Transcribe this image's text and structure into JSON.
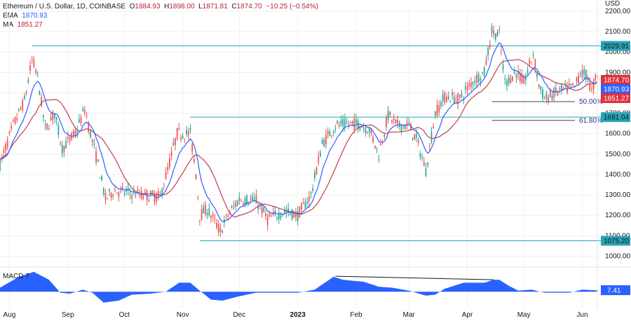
{
  "header": {
    "symbol": "Ethereum / U.S. Dollar, 1D, COINBASE",
    "o_label": "O",
    "o_value": "1884.93",
    "h_label": "H",
    "h_value": "1898.00",
    "l_label": "L",
    "l_value": "1871.81",
    "c_label": "C",
    "c_value": "1874.70",
    "change": "−10.25 (−0.54%)",
    "ema_label": "EMA",
    "ema_value": "1870.93",
    "ma_label": "MA",
    "ma_value": "1851.27"
  },
  "colors": {
    "up": "#26a69a",
    "down": "#ef5350",
    "ema": "#2962ff",
    "ma": "#c2404a",
    "level": "#2aa3b5",
    "macd": "#2962ff",
    "fib": "#434651",
    "grid": "#eef0f3",
    "price_tag": "#e0303b"
  },
  "chart_data": [
    {
      "type": "candlestick",
      "title": "",
      "y_unit": "USD",
      "ylim": [
        950,
        2200
      ],
      "y_ticks": [
        "1000.00",
        "1100.00",
        "1200.00",
        "1300.00",
        "1400.00",
        "1500.00",
        "1600.00",
        "1700.00",
        "1800.00",
        "1900.00",
        "2000.00",
        "2100.00",
        "2200.00"
      ],
      "x_ticks": [
        "Aug",
        "Sep",
        "Oct",
        "Nov",
        "Dec",
        "2023",
        "Feb",
        "Mar",
        "Apr",
        "May",
        "Jun"
      ],
      "x_range": [
        "2022-07-27",
        "2023-06-09"
      ],
      "price_anchors": [
        [
          "2022-07-27",
          1450
        ],
        [
          "2022-08-03",
          1640
        ],
        [
          "2022-08-09",
          1760
        ],
        [
          "2022-08-13",
          1960
        ],
        [
          "2022-08-16",
          1880
        ],
        [
          "2022-08-20",
          1620
        ],
        [
          "2022-08-25",
          1700
        ],
        [
          "2022-08-29",
          1530
        ],
        [
          "2022-09-05",
          1600
        ],
        [
          "2022-09-10",
          1720
        ],
        [
          "2022-09-13",
          1600
        ],
        [
          "2022-09-17",
          1450
        ],
        [
          "2022-09-21",
          1280
        ],
        [
          "2022-09-25",
          1320
        ],
        [
          "2022-10-03",
          1310
        ],
        [
          "2022-10-10",
          1300
        ],
        [
          "2022-10-20",
          1290
        ],
        [
          "2022-10-25",
          1460
        ],
        [
          "2022-10-29",
          1600
        ],
        [
          "2022-11-05",
          1600
        ],
        [
          "2022-11-08",
          1400
        ],
        [
          "2022-11-10",
          1200
        ],
        [
          "2022-11-14",
          1230
        ],
        [
          "2022-11-21",
          1120
        ],
        [
          "2022-11-25",
          1200
        ],
        [
          "2022-12-01",
          1280
        ],
        [
          "2022-12-10",
          1270
        ],
        [
          "2022-12-16",
          1180
        ],
        [
          "2022-12-25",
          1220
        ],
        [
          "2023-01-01",
          1200
        ],
        [
          "2023-01-08",
          1300
        ],
        [
          "2023-01-14",
          1550
        ],
        [
          "2023-01-21",
          1640
        ],
        [
          "2023-02-02",
          1650
        ],
        [
          "2023-02-08",
          1620
        ],
        [
          "2023-02-13",
          1500
        ],
        [
          "2023-02-18",
          1690
        ],
        [
          "2023-02-23",
          1640
        ],
        [
          "2023-03-01",
          1640
        ],
        [
          "2023-03-05",
          1570
        ],
        [
          "2023-03-10",
          1420
        ],
        [
          "2023-03-15",
          1700
        ],
        [
          "2023-03-20",
          1780
        ],
        [
          "2023-03-28",
          1770
        ],
        [
          "2023-04-04",
          1860
        ],
        [
          "2023-04-10",
          1900
        ],
        [
          "2023-04-14",
          2100
        ],
        [
          "2023-04-18",
          2080
        ],
        [
          "2023-04-21",
          1850
        ],
        [
          "2023-04-27",
          1900
        ],
        [
          "2023-05-01",
          1850
        ],
        [
          "2023-05-06",
          1990
        ],
        [
          "2023-05-09",
          1840
        ],
        [
          "2023-05-12",
          1770
        ],
        [
          "2023-05-20",
          1810
        ],
        [
          "2023-05-28",
          1830
        ],
        [
          "2023-05-31",
          1900
        ],
        [
          "2023-06-04",
          1880
        ],
        [
          "2023-06-06",
          1800
        ],
        [
          "2023-06-08",
          1874.7
        ]
      ],
      "ema": {
        "name": "EMA",
        "last": 1870.93
      },
      "ma": {
        "name": "MA",
        "last": 1851.27
      },
      "levels": [
        {
          "label": "2029.91",
          "value": 2029.91,
          "from": "2022-08-13",
          "to": "2023-06-09"
        },
        {
          "label": "1681.04",
          "value": 1681.04,
          "from": "2022-11-05",
          "to": "2023-06-09"
        },
        {
          "label": "1075.20",
          "value": 1075.2,
          "from": "2022-11-10",
          "to": "2023-06-09"
        }
      ],
      "fib_levels": [
        {
          "label": "50.00%",
          "value": 1757,
          "from": "2023-04-14",
          "to": "2023-06-09"
        },
        {
          "label": "61.80%",
          "value": 1665,
          "from": "2023-04-14",
          "to": "2023-06-09"
        }
      ],
      "price_tags": [
        {
          "label": "1874.70",
          "value": 1874.7,
          "kind": "close"
        },
        {
          "label": "1870.93",
          "value": 1870.93,
          "kind": "ema"
        },
        {
          "label": "1851.27",
          "value": 1851.27,
          "kind": "ma"
        }
      ]
    },
    {
      "type": "area",
      "title": "MACD",
      "label": "MACD 7",
      "last_value_label": "7.41",
      "last": 7.41,
      "anchors": [
        [
          "2022-07-27",
          20
        ],
        [
          "2022-08-06",
          75
        ],
        [
          "2022-08-14",
          100
        ],
        [
          "2022-08-22",
          60
        ],
        [
          "2022-08-28",
          -5
        ],
        [
          "2022-09-02",
          -10
        ],
        [
          "2022-09-09",
          10
        ],
        [
          "2022-09-14",
          -5
        ],
        [
          "2022-09-20",
          -55
        ],
        [
          "2022-09-28",
          -45
        ],
        [
          "2022-10-05",
          -15
        ],
        [
          "2022-10-15",
          -10
        ],
        [
          "2022-10-23",
          0
        ],
        [
          "2022-10-30",
          45
        ],
        [
          "2022-11-05",
          45
        ],
        [
          "2022-11-10",
          5
        ],
        [
          "2022-11-16",
          -40
        ],
        [
          "2022-11-22",
          -45
        ],
        [
          "2022-11-30",
          -25
        ],
        [
          "2022-12-10",
          -5
        ],
        [
          "2022-12-20",
          -5
        ],
        [
          "2023-01-01",
          -5
        ],
        [
          "2023-01-10",
          10
        ],
        [
          "2023-01-20",
          75
        ],
        [
          "2023-01-25",
          60
        ],
        [
          "2023-02-05",
          50
        ],
        [
          "2023-02-13",
          25
        ],
        [
          "2023-02-20",
          20
        ],
        [
          "2023-03-01",
          5
        ],
        [
          "2023-03-10",
          -20
        ],
        [
          "2023-03-15",
          -15
        ],
        [
          "2023-03-20",
          15
        ],
        [
          "2023-03-30",
          45
        ],
        [
          "2023-04-10",
          45
        ],
        [
          "2023-04-15",
          60
        ],
        [
          "2023-04-18",
          60
        ],
        [
          "2023-04-23",
          30
        ],
        [
          "2023-04-28",
          5
        ],
        [
          "2023-05-05",
          10
        ],
        [
          "2023-05-12",
          -5
        ],
        [
          "2023-05-25",
          -5
        ],
        [
          "2023-06-01",
          10
        ],
        [
          "2023-06-08",
          7.41
        ]
      ],
      "divergence_line": {
        "from": [
          "2023-01-21",
          78
        ],
        "to": [
          "2023-04-15",
          60
        ]
      }
    }
  ]
}
